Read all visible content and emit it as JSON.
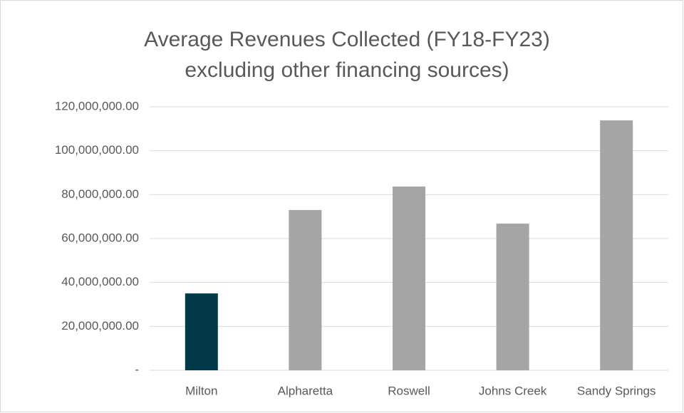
{
  "chart_data": {
    "type": "bar",
    "title": [
      "Average Revenues Collected (FY18-FY23)",
      "excluding other financing sources)"
    ],
    "categories": [
      "Milton",
      "Alpharetta",
      "Roswell",
      "Johns Creek",
      "Sandy Springs"
    ],
    "values": [
      35000000,
      73000000,
      83700000,
      66800000,
      113800000
    ],
    "colors": [
      "#023a4a",
      "#a5a5a5",
      "#a5a5a5",
      "#a5a5a5",
      "#a5a5a5"
    ],
    "ylim": [
      0,
      120000000
    ],
    "yticks": [
      {
        "value": 0,
        "label": "-"
      },
      {
        "value": 20000000,
        "label": "20,000,000.00"
      },
      {
        "value": 40000000,
        "label": "40,000,000.00"
      },
      {
        "value": 60000000,
        "label": "60,000,000.00"
      },
      {
        "value": 80000000,
        "label": "80,000,000.00"
      },
      {
        "value": 100000000,
        "label": "100,000,000.00"
      },
      {
        "value": 120000000,
        "label": "120,000,000.00"
      }
    ],
    "grid": true
  }
}
